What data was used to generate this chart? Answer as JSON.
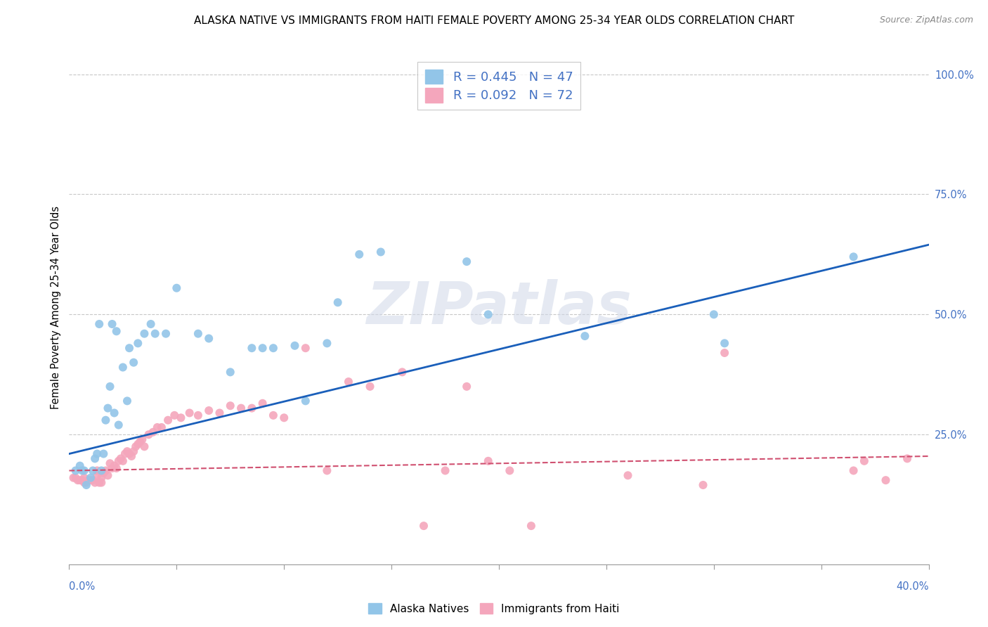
{
  "title": "ALASKA NATIVE VS IMMIGRANTS FROM HAITI FEMALE POVERTY AMONG 25-34 YEAR OLDS CORRELATION CHART",
  "source": "Source: ZipAtlas.com",
  "ylabel": "Female Poverty Among 25-34 Year Olds",
  "yticks": [
    0.0,
    0.25,
    0.5,
    0.75,
    1.0
  ],
  "ytick_labels": [
    "",
    "25.0%",
    "50.0%",
    "75.0%",
    "100.0%"
  ],
  "xlim": [
    0.0,
    0.4
  ],
  "ylim": [
    -0.02,
    1.05
  ],
  "watermark": "ZIPatlas",
  "legend1_label": "R = 0.445   N = 47",
  "legend2_label": "R = 0.092   N = 72",
  "legend_bottom_label1": "Alaska Natives",
  "legend_bottom_label2": "Immigrants from Haiti",
  "blue_color": "#92c5e8",
  "pink_color": "#f4a6bc",
  "line_blue": "#1a5fba",
  "line_pink": "#d05070",
  "alaska_scatter_x": [
    0.003,
    0.005,
    0.006,
    0.007,
    0.008,
    0.01,
    0.011,
    0.012,
    0.013,
    0.014,
    0.015,
    0.016,
    0.017,
    0.018,
    0.019,
    0.02,
    0.021,
    0.022,
    0.023,
    0.025,
    0.027,
    0.028,
    0.03,
    0.032,
    0.035,
    0.038,
    0.04,
    0.045,
    0.05,
    0.06,
    0.065,
    0.075,
    0.085,
    0.09,
    0.095,
    0.105,
    0.11,
    0.12,
    0.125,
    0.135,
    0.145,
    0.185,
    0.195,
    0.24,
    0.3,
    0.305,
    0.365
  ],
  "alaska_scatter_y": [
    0.175,
    0.185,
    0.175,
    0.175,
    0.145,
    0.16,
    0.175,
    0.2,
    0.21,
    0.48,
    0.175,
    0.21,
    0.28,
    0.305,
    0.35,
    0.48,
    0.295,
    0.465,
    0.27,
    0.39,
    0.32,
    0.43,
    0.4,
    0.44,
    0.46,
    0.48,
    0.46,
    0.46,
    0.555,
    0.46,
    0.45,
    0.38,
    0.43,
    0.43,
    0.43,
    0.435,
    0.32,
    0.44,
    0.525,
    0.625,
    0.63,
    0.61,
    0.5,
    0.455,
    0.5,
    0.44,
    0.62
  ],
  "haiti_scatter_x": [
    0.002,
    0.003,
    0.004,
    0.005,
    0.006,
    0.007,
    0.007,
    0.008,
    0.009,
    0.01,
    0.011,
    0.012,
    0.013,
    0.013,
    0.014,
    0.015,
    0.015,
    0.016,
    0.017,
    0.018,
    0.019,
    0.02,
    0.021,
    0.022,
    0.023,
    0.024,
    0.025,
    0.026,
    0.027,
    0.028,
    0.029,
    0.03,
    0.031,
    0.032,
    0.033,
    0.034,
    0.035,
    0.037,
    0.039,
    0.041,
    0.043,
    0.046,
    0.049,
    0.052,
    0.056,
    0.06,
    0.065,
    0.07,
    0.075,
    0.08,
    0.085,
    0.09,
    0.095,
    0.1,
    0.11,
    0.12,
    0.13,
    0.14,
    0.155,
    0.165,
    0.175,
    0.185,
    0.195,
    0.205,
    0.215,
    0.26,
    0.295,
    0.305,
    0.365,
    0.37,
    0.38,
    0.39
  ],
  "haiti_scatter_y": [
    0.16,
    0.16,
    0.155,
    0.155,
    0.155,
    0.15,
    0.16,
    0.15,
    0.155,
    0.155,
    0.155,
    0.15,
    0.165,
    0.175,
    0.15,
    0.15,
    0.16,
    0.17,
    0.175,
    0.165,
    0.19,
    0.18,
    0.185,
    0.18,
    0.195,
    0.2,
    0.195,
    0.21,
    0.215,
    0.21,
    0.205,
    0.215,
    0.225,
    0.23,
    0.235,
    0.24,
    0.225,
    0.25,
    0.255,
    0.265,
    0.265,
    0.28,
    0.29,
    0.285,
    0.295,
    0.29,
    0.3,
    0.295,
    0.31,
    0.305,
    0.305,
    0.315,
    0.29,
    0.285,
    0.43,
    0.175,
    0.36,
    0.35,
    0.38,
    0.06,
    0.175,
    0.35,
    0.195,
    0.175,
    0.06,
    0.165,
    0.145,
    0.42,
    0.175,
    0.195,
    0.155,
    0.2
  ],
  "blue_trend_x0": 0.0,
  "blue_trend_x1": 0.4,
  "blue_trend_y0": 0.21,
  "blue_trend_y1": 0.645,
  "pink_trend_x0": 0.0,
  "pink_trend_x1": 0.4,
  "pink_trend_y0": 0.175,
  "pink_trend_y1": 0.205,
  "title_fontsize": 11,
  "axis_color": "#4472c4",
  "grid_color": "#c8c8c8"
}
